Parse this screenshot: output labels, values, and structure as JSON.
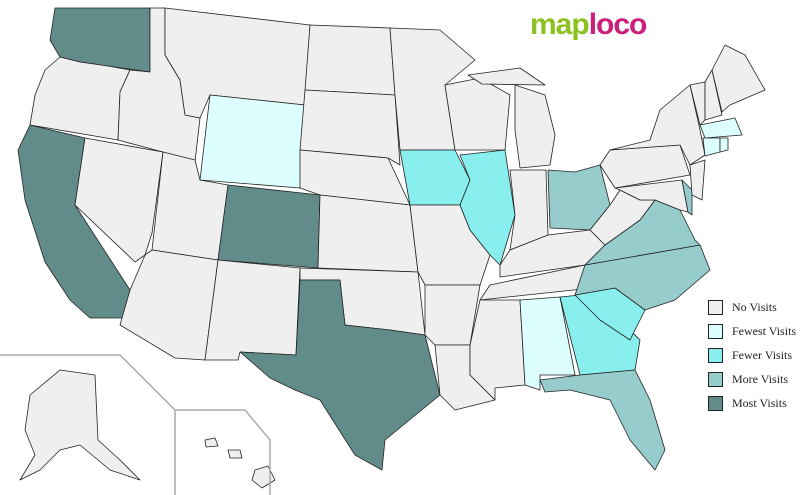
{
  "logo": {
    "part1": "map",
    "part2": "loco"
  },
  "colors": {
    "none": "#efefef",
    "fewest": "#dcfefe",
    "fewer": "#88eeee",
    "more": "#96cccc",
    "most": "#618c8a"
  },
  "legend": [
    {
      "key": "none",
      "label": "No Visits"
    },
    {
      "key": "fewest",
      "label": "Fewest Visits"
    },
    {
      "key": "fewer",
      "label": "Fewer Visits"
    },
    {
      "key": "more",
      "label": "More Visits"
    },
    {
      "key": "most",
      "label": "Most Visits"
    }
  ],
  "states": {
    "WA": "most",
    "OR": "none",
    "CA": "most",
    "NV": "none",
    "ID": "none",
    "MT": "none",
    "WY": "fewest",
    "UT": "none",
    "CO": "most",
    "AZ": "none",
    "NM": "none",
    "ND": "none",
    "SD": "none",
    "NE": "none",
    "KS": "none",
    "OK": "none",
    "TX": "most",
    "MN": "none",
    "IA": "fewer",
    "MO": "none",
    "AR": "none",
    "LA": "none",
    "WI": "none",
    "IL": "fewer",
    "MI": "none",
    "IN": "none",
    "OH": "more",
    "KY": "none",
    "TN": "none",
    "MS": "none",
    "AL": "fewest",
    "GA": "fewer",
    "FL": "more",
    "SC": "fewer",
    "NC": "more",
    "VA": "more",
    "WV": "none",
    "PA": "none",
    "NY": "none",
    "MD": "none",
    "DE": "more",
    "NJ": "none",
    "VT": "none",
    "NH": "none",
    "ME": "none",
    "MA": "fewest",
    "CT": "fewest",
    "RI": "fewest",
    "AK": "none",
    "HI": "none"
  }
}
